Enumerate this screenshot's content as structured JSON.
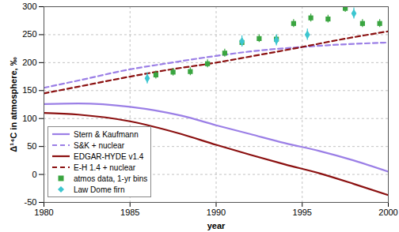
{
  "chart_data": {
    "type": "line",
    "x_label": "year",
    "y_label": "Δ¹⁴C in atmosphere, ‰",
    "xlim": [
      1980,
      2000
    ],
    "xticks": [
      1980,
      1985,
      1990,
      1995,
      2000
    ],
    "ylim": [
      -50,
      300
    ],
    "yticks": [
      -50,
      0,
      50,
      100,
      150,
      200,
      250,
      300
    ],
    "grid": true,
    "legend": "lower left",
    "series": [
      {
        "name": "Stern & Kaufmann",
        "type": "line",
        "line_style": "solid",
        "color": "#9b7fe6",
        "x": [
          1980,
          1982,
          1985,
          1988,
          1990,
          1992,
          1994,
          1996,
          1998,
          2000
        ],
        "values": [
          126,
          127,
          121,
          105,
          88,
          72,
          56,
          42,
          25,
          5
        ]
      },
      {
        "name": "S&K + nuclear",
        "type": "line",
        "line_style": "dashed",
        "color": "#9b7fe6",
        "x": [
          1980,
          1982,
          1985,
          1987,
          1990,
          1992,
          1995,
          1997,
          2000
        ],
        "values": [
          155,
          168,
          188,
          198,
          212,
          220,
          228,
          232,
          236
        ]
      },
      {
        "name": "EDGAR-HYDE v1.4",
        "type": "line",
        "line_style": "solid",
        "color": "#8b1010",
        "x": [
          1980,
          1982,
          1985,
          1988,
          1990,
          1992,
          1994,
          1996,
          1998,
          2000
        ],
        "values": [
          110,
          107,
          95,
          72,
          53,
          35,
          18,
          2,
          -17,
          -37
        ]
      },
      {
        "name": "E-H 1.4 + nuclear",
        "type": "line",
        "line_style": "dashed",
        "color": "#8b1010",
        "x": [
          1980,
          1982,
          1985,
          1987,
          1990,
          1992,
          1995,
          1997,
          2000
        ],
        "values": [
          145,
          157,
          175,
          186,
          200,
          211,
          228,
          240,
          256
        ]
      },
      {
        "name": "atmos data, 1-yr bins",
        "type": "scatter",
        "marker": "square",
        "color": "#3aa540",
        "x": [
          1986.5,
          1987.5,
          1988.5,
          1989.5,
          1990.5,
          1991.5,
          1992.5,
          1993.5,
          1994.5,
          1995.5,
          1996.5,
          1997.5,
          1998.5,
          1999.5
        ],
        "values": [
          178,
          183,
          184,
          198,
          217,
          236,
          243,
          242,
          270,
          280,
          278,
          297,
          270,
          270
        ],
        "errors": [
          7,
          7,
          7,
          7,
          7,
          7,
          7,
          7,
          7,
          7,
          7,
          7,
          7,
          7
        ]
      },
      {
        "name": "Law Dome firn",
        "type": "scatter",
        "marker": "diamond",
        "color": "#3cc6d0",
        "x": [
          1986,
          1991.5,
          1993.5,
          1995.3,
          1998
        ],
        "values": [
          172,
          238,
          240,
          250,
          288
        ],
        "errors": [
          10,
          10,
          10,
          10,
          10
        ]
      }
    ]
  }
}
